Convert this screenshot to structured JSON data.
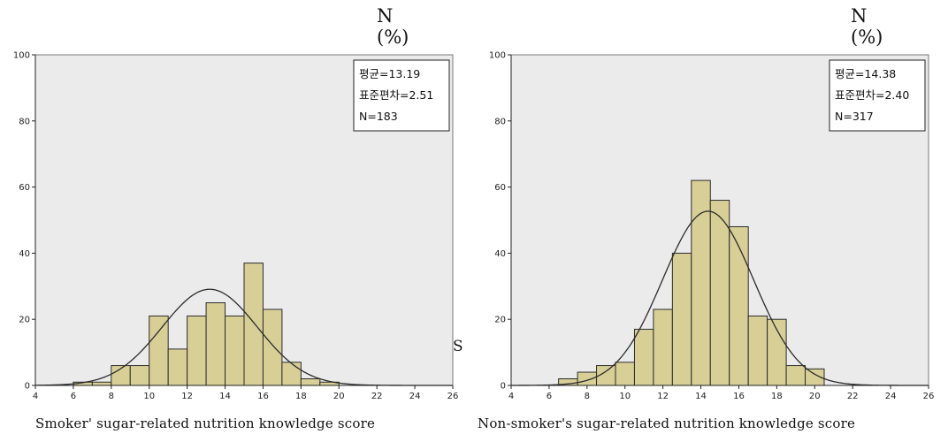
{
  "chart_data": [
    {
      "type": "bar",
      "unit_label": "N (%)",
      "xlabel": "Smoker' sugar-related nutrition knowledge score",
      "xlim": [
        4,
        26
      ],
      "ylim": [
        0,
        100
      ],
      "x_ticks": [
        "4",
        "6",
        "8",
        "10",
        "12",
        "14",
        "16",
        "18",
        "20",
        "22",
        "24",
        "26"
      ],
      "y_ticks": [
        "0",
        "20",
        "40",
        "60",
        "80",
        "100"
      ],
      "bin_width": 1,
      "bins": [
        {
          "x0": 6,
          "value": 1
        },
        {
          "x0": 7,
          "value": 1
        },
        {
          "x0": 8,
          "value": 6
        },
        {
          "x0": 9,
          "value": 6
        },
        {
          "x0": 10,
          "value": 21
        },
        {
          "x0": 11,
          "value": 11
        },
        {
          "x0": 12,
          "value": 21
        },
        {
          "x0": 13,
          "value": 25
        },
        {
          "x0": 14,
          "value": 21
        },
        {
          "x0": 15,
          "value": 37
        },
        {
          "x0": 16,
          "value": 23
        },
        {
          "x0": 17,
          "value": 7
        },
        {
          "x0": 18,
          "value": 2
        },
        {
          "x0": 19,
          "value": 1
        }
      ],
      "stats": {
        "mean_label": "평균=13.19",
        "sd_label": "표준편차=2.51",
        "n_label": "N=183",
        "mean": 13.19,
        "sd": 2.51,
        "n": 183
      },
      "normal_curve": true,
      "grid": false
    },
    {
      "type": "bar",
      "unit_label": "N (%)",
      "xlabel": "Non-smoker's sugar-related nutrition knowledge score",
      "xlim": [
        4,
        26
      ],
      "ylim": [
        0,
        100
      ],
      "x_ticks": [
        "4",
        "6",
        "8",
        "10",
        "12",
        "14",
        "16",
        "18",
        "20",
        "22",
        "24",
        "26"
      ],
      "y_ticks": [
        "0",
        "20",
        "40",
        "60",
        "80",
        "100"
      ],
      "bin_width": 1,
      "bins": [
        {
          "x0": 6.5,
          "value": 2
        },
        {
          "x0": 7.5,
          "value": 4
        },
        {
          "x0": 8.5,
          "value": 6
        },
        {
          "x0": 9.5,
          "value": 7
        },
        {
          "x0": 10.5,
          "value": 17
        },
        {
          "x0": 11.5,
          "value": 23
        },
        {
          "x0": 12.5,
          "value": 40
        },
        {
          "x0": 13.5,
          "value": 62
        },
        {
          "x0": 14.5,
          "value": 56
        },
        {
          "x0": 15.5,
          "value": 48
        },
        {
          "x0": 16.5,
          "value": 21
        },
        {
          "x0": 17.5,
          "value": 20
        },
        {
          "x0": 18.5,
          "value": 6
        },
        {
          "x0": 19.5,
          "value": 5
        }
      ],
      "stats": {
        "mean_label": "평균=14.38",
        "sd_label": "표준편차=2.40",
        "n_label": "N=317",
        "mean": 14.38,
        "sd": 2.4,
        "n": 317
      },
      "normal_curve": true,
      "grid": false
    }
  ],
  "stray_text": "S",
  "colors": {
    "plot_background": "#ebebeb",
    "bar_fill": "#d8cf97",
    "bar_stroke": "#2b2b2b",
    "curve": "#2b2b2b"
  }
}
